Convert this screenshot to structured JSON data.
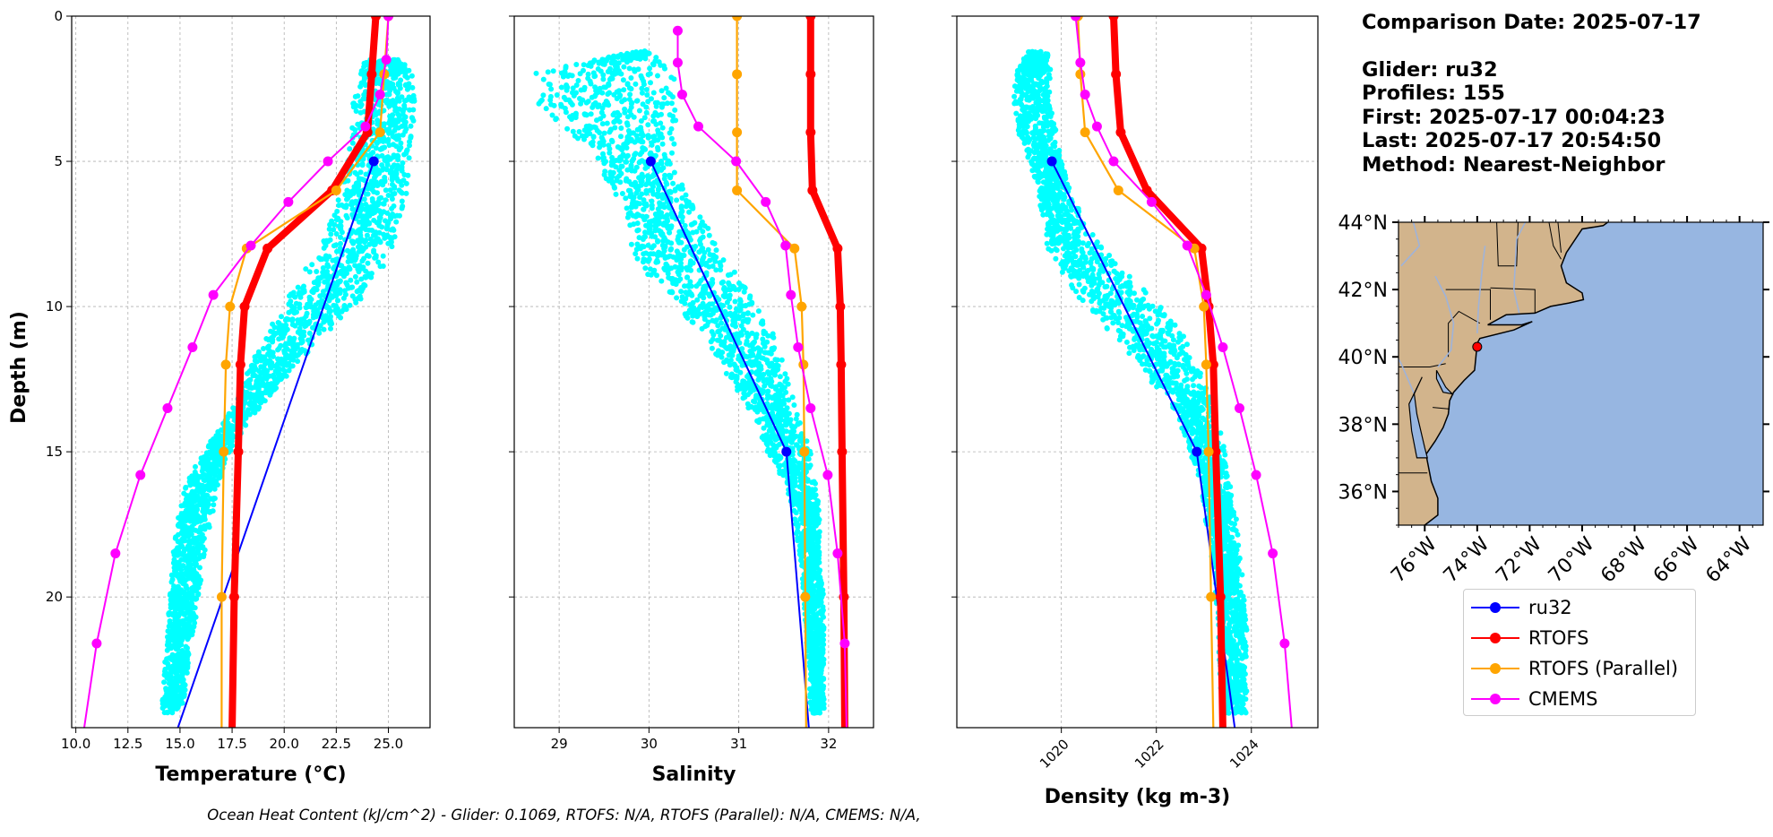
{
  "colors": {
    "glider_scatter": "#00ffff",
    "ru32": "#0000ff",
    "rtofs": "#ff0000",
    "rtofs_parallel": "#ffa500",
    "cmems": "#ff00ff",
    "land": "#d2b48c",
    "ocean": "#97b6e1",
    "rivers": "#9fb3d9"
  },
  "chart_data": [
    {
      "type": "line",
      "panel": "temperature",
      "xlabel": "Temperature (°C)",
      "ylabel": "Depth (m)",
      "xlim": [
        9.8,
        27.0
      ],
      "ylim": [
        24.5,
        0
      ],
      "xticks": [
        "10.0",
        "12.5",
        "15.0",
        "17.5",
        "20.0",
        "22.5",
        "25.0"
      ],
      "xtick_values": [
        10.0,
        12.5,
        15.0,
        17.5,
        20.0,
        22.5,
        25.0
      ],
      "yticks": [
        "0",
        "5",
        "10",
        "15",
        "20"
      ],
      "ytick_values": [
        0,
        5,
        10,
        15,
        20
      ],
      "grid": true,
      "scatter_profile": {
        "name": "ru32 profiles",
        "depth": [
          1.5,
          2,
          3,
          4,
          5,
          6,
          7,
          8,
          9,
          10,
          11,
          12,
          13,
          14,
          15,
          16,
          17,
          18,
          19,
          20,
          21,
          22,
          23,
          24
        ],
        "x_min": [
          23.8,
          23.6,
          23.3,
          23.2,
          23.0,
          22.7,
          22.3,
          21.6,
          20.7,
          19.9,
          19.1,
          18.4,
          17.8,
          17.1,
          16.1,
          15.3,
          14.9,
          14.7,
          14.6,
          14.5,
          14.4,
          14.3,
          14.2,
          14.1
        ],
        "x_max": [
          25.6,
          26.2,
          26.3,
          26.2,
          26.0,
          25.9,
          25.6,
          25.2,
          24.5,
          23.4,
          22.0,
          20.6,
          19.4,
          18.3,
          17.4,
          16.9,
          16.6,
          16.3,
          16.1,
          15.9,
          15.7,
          15.5,
          15.3,
          15.1
        ]
      },
      "series": [
        {
          "name": "ru32",
          "depth": [
            5,
            24.5
          ],
          "values": [
            24.3,
            14.9
          ],
          "markers": [
            true,
            false
          ]
        },
        {
          "name": "RTOFS",
          "depth": [
            0,
            2,
            4,
            6,
            8,
            10,
            12,
            15,
            20,
            24.5
          ],
          "values": [
            24.4,
            24.2,
            24.0,
            22.3,
            19.2,
            18.1,
            17.9,
            17.8,
            17.6,
            17.5
          ],
          "markers": [
            true,
            true,
            true,
            true,
            true,
            true,
            true,
            true,
            true,
            false
          ]
        },
        {
          "name": "RTOFS (Parallel)",
          "depth": [
            0,
            2,
            4,
            6,
            8,
            10,
            12,
            15,
            20,
            24.5
          ],
          "values": [
            25.0,
            24.8,
            24.6,
            22.5,
            18.2,
            17.4,
            17.2,
            17.1,
            17.0,
            17.0
          ],
          "markers": [
            true,
            true,
            true,
            true,
            true,
            true,
            true,
            true,
            true,
            false
          ]
        },
        {
          "name": "CMEMS",
          "depth": [
            0,
            1.5,
            2.7,
            3.8,
            5,
            6.4,
            7.9,
            9.6,
            11.4,
            13.5,
            15.8,
            18.5,
            21.6,
            24.5
          ],
          "values": [
            25.0,
            24.9,
            24.6,
            23.9,
            22.1,
            20.2,
            18.4,
            16.6,
            15.6,
            14.4,
            13.1,
            11.9,
            11.0,
            10.4
          ],
          "markers": [
            true,
            true,
            true,
            true,
            true,
            true,
            true,
            true,
            true,
            true,
            true,
            true,
            true,
            false
          ]
        }
      ]
    },
    {
      "type": "line",
      "panel": "salinity",
      "xlabel": "Salinity",
      "xlim": [
        28.5,
        32.5
      ],
      "ylim": [
        24.5,
        0
      ],
      "xticks": [
        "29",
        "30",
        "31",
        "32"
      ],
      "xtick_values": [
        29,
        30,
        31,
        32
      ],
      "yticks": [
        "",
        "",
        "",
        "",
        ""
      ],
      "ytick_values": [
        0,
        5,
        10,
        15,
        20
      ],
      "grid": true,
      "scatter_profile": {
        "name": "ru32 profiles",
        "depth": [
          1.2,
          2,
          3,
          4,
          5,
          6,
          7,
          8,
          9,
          10,
          11,
          12,
          13,
          14,
          15,
          16,
          17,
          18,
          19,
          20,
          21,
          22,
          23,
          24
        ],
        "x_min": [
          29.8,
          28.7,
          28.75,
          29.1,
          29.4,
          29.6,
          29.7,
          29.8,
          30.0,
          30.3,
          30.6,
          30.8,
          31.0,
          31.2,
          31.3,
          31.5,
          31.6,
          31.65,
          31.7,
          31.72,
          31.74,
          31.76,
          31.78,
          31.8
        ],
        "x_max": [
          30.0,
          30.3,
          30.3,
          30.3,
          30.3,
          30.4,
          30.6,
          30.8,
          31.0,
          31.2,
          31.4,
          31.5,
          31.6,
          31.7,
          31.8,
          31.85,
          31.9,
          31.9,
          31.9,
          31.95,
          31.95,
          31.95,
          31.95,
          31.95
        ]
      },
      "series": [
        {
          "name": "ru32",
          "depth": [
            5,
            15,
            24.5
          ],
          "values": [
            30.02,
            31.53,
            31.78
          ],
          "markers": [
            true,
            true,
            false
          ]
        },
        {
          "name": "RTOFS",
          "depth": [
            0,
            2,
            4,
            6,
            8,
            10,
            12,
            15,
            20,
            24.5
          ],
          "values": [
            31.8,
            31.8,
            31.8,
            31.82,
            32.1,
            32.13,
            32.14,
            32.15,
            32.17,
            32.18
          ],
          "markers": [
            true,
            true,
            true,
            true,
            true,
            true,
            true,
            true,
            true,
            false
          ]
        },
        {
          "name": "RTOFS (Parallel)",
          "depth": [
            0,
            2,
            4,
            6,
            8,
            10,
            12,
            15,
            20,
            24.5
          ],
          "values": [
            30.98,
            30.98,
            30.98,
            30.98,
            31.62,
            31.7,
            31.72,
            31.73,
            31.74,
            31.75
          ],
          "markers": [
            true,
            true,
            true,
            true,
            true,
            true,
            true,
            true,
            true,
            false
          ]
        },
        {
          "name": "CMEMS",
          "depth": [
            0.5,
            1.6,
            2.7,
            3.8,
            5,
            6.4,
            7.9,
            9.6,
            11.4,
            13.5,
            15.8,
            18.5,
            21.6,
            24.5
          ],
          "values": [
            30.32,
            30.32,
            30.37,
            30.55,
            30.97,
            31.3,
            31.52,
            31.58,
            31.66,
            31.8,
            31.99,
            32.1,
            32.18,
            32.2
          ],
          "markers": [
            true,
            true,
            true,
            true,
            true,
            true,
            true,
            true,
            true,
            true,
            true,
            true,
            true,
            false
          ]
        }
      ]
    },
    {
      "type": "line",
      "panel": "density",
      "xlabel": "Density (kg m-3)",
      "xlim": [
        1017.8,
        1025.4
      ],
      "ylim": [
        24.5,
        0
      ],
      "xticks": [
        "1020",
        "1022",
        "1024"
      ],
      "xtick_values": [
        1020,
        1022,
        1024
      ],
      "yticks": [
        "",
        "",
        "",
        "",
        ""
      ],
      "ytick_values": [
        0,
        5,
        10,
        15,
        20
      ],
      "grid": true,
      "scatter_profile": {
        "name": "ru32 profiles",
        "depth": [
          1.2,
          2,
          3,
          4,
          5,
          6,
          7,
          8,
          9,
          10,
          11,
          12,
          13,
          14,
          15,
          16,
          17,
          18,
          19,
          20,
          21,
          22,
          23,
          24
        ],
        "x_min": [
          1019.3,
          1019.0,
          1019.0,
          1019.1,
          1019.3,
          1019.5,
          1019.6,
          1019.7,
          1020.0,
          1020.5,
          1021.1,
          1021.6,
          1022.1,
          1022.5,
          1022.7,
          1022.9,
          1023.0,
          1023.1,
          1023.2,
          1023.25,
          1023.3,
          1023.3,
          1023.35,
          1023.4
        ],
        "x_max": [
          1019.7,
          1019.8,
          1019.8,
          1019.9,
          1020.0,
          1020.2,
          1020.5,
          1020.9,
          1021.5,
          1022.1,
          1022.6,
          1022.9,
          1023.1,
          1023.3,
          1023.45,
          1023.55,
          1023.65,
          1023.75,
          1023.8,
          1023.85,
          1023.9,
          1023.9,
          1023.9,
          1023.9
        ]
      },
      "series": [
        {
          "name": "ru32",
          "depth": [
            5,
            15,
            24.5
          ],
          "values": [
            1019.8,
            1022.85,
            1023.65
          ],
          "markers": [
            true,
            true,
            false
          ]
        },
        {
          "name": "RTOFS",
          "depth": [
            0,
            2,
            4,
            6,
            8,
            10,
            12,
            15,
            20,
            24.5
          ],
          "values": [
            1021.1,
            1021.15,
            1021.25,
            1021.8,
            1022.95,
            1023.1,
            1023.2,
            1023.25,
            1023.35,
            1023.4
          ],
          "markers": [
            true,
            true,
            true,
            true,
            true,
            true,
            true,
            true,
            true,
            false
          ]
        },
        {
          "name": "RTOFS (Parallel)",
          "depth": [
            0,
            2,
            4,
            6,
            8,
            10,
            12,
            15,
            20,
            24.5
          ],
          "values": [
            1020.35,
            1020.4,
            1020.5,
            1021.2,
            1022.8,
            1023.0,
            1023.05,
            1023.1,
            1023.15,
            1023.2
          ],
          "markers": [
            true,
            true,
            true,
            true,
            true,
            true,
            true,
            true,
            true,
            false
          ]
        },
        {
          "name": "CMEMS",
          "depth": [
            0,
            1.6,
            2.7,
            3.8,
            5,
            6.4,
            7.9,
            9.6,
            11.4,
            13.5,
            15.8,
            18.5,
            21.6,
            24.5
          ],
          "values": [
            1020.3,
            1020.4,
            1020.5,
            1020.75,
            1021.1,
            1021.9,
            1022.65,
            1023.05,
            1023.4,
            1023.75,
            1024.1,
            1024.45,
            1024.7,
            1024.85
          ],
          "markers": [
            true,
            true,
            true,
            true,
            true,
            true,
            true,
            true,
            true,
            true,
            true,
            true,
            true,
            false
          ]
        }
      ]
    }
  ],
  "map": {
    "lat_ticks": [
      "44°N",
      "42°N",
      "40°N",
      "38°N",
      "36°N"
    ],
    "lat_values": [
      44,
      42,
      40,
      38,
      36
    ],
    "lon_ticks": [
      "76°W",
      "74°W",
      "72°W",
      "70°W",
      "68°W",
      "66°W",
      "64°W"
    ],
    "lon_values": [
      -76,
      -74,
      -72,
      -70,
      -68,
      -66,
      -64
    ],
    "extent": {
      "lon_min": -77,
      "lon_max": -63.1,
      "lat_min": 35,
      "lat_max": 44
    },
    "glider_position": {
      "lon": -74.0,
      "lat": 40.3
    }
  },
  "info": {
    "comparison_date": "Comparison Date: 2025-07-17",
    "glider": "Glider: ru32",
    "profiles": "Profiles: 155",
    "first": "First: 2025-07-17 00:04:23",
    "last": "Last: 2025-07-17 20:54:50",
    "method": "Method: Nearest-Neighbor"
  },
  "legend": {
    "items": [
      {
        "label": "ru32",
        "color": "#0000ff"
      },
      {
        "label": "RTOFS",
        "color": "#ff0000"
      },
      {
        "label": "RTOFS (Parallel)",
        "color": "#ffa500"
      },
      {
        "label": "CMEMS",
        "color": "#ff00ff"
      }
    ]
  },
  "footer": "Ocean Heat Content (kJ/cm^2) - Glider: 0.1069,  RTOFS: N/A,  RTOFS (Parallel): N/A,  CMEMS: N/A,"
}
